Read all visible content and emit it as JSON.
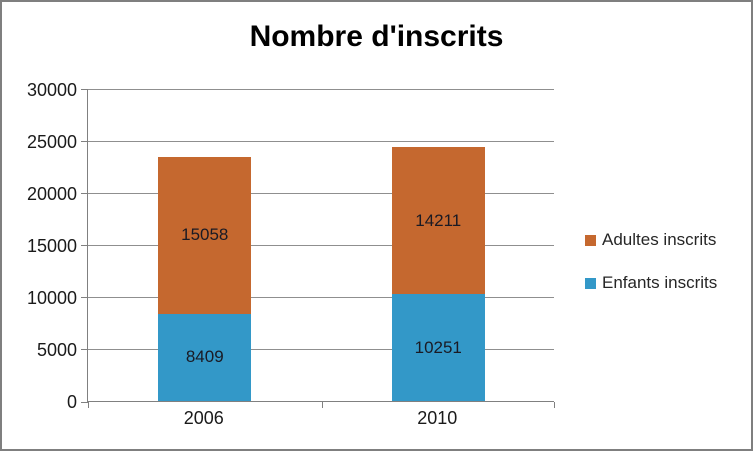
{
  "window": {
    "background": "#FFFFFF",
    "border_color": "#7F7F7F"
  },
  "chart_data": {
    "type": "bar",
    "stacked": true,
    "title": "Nombre d'inscrits",
    "categories": [
      "2006",
      "2010"
    ],
    "series": [
      {
        "name": "Enfants inscrits",
        "color": "#3398C8",
        "values": [
          8409,
          10251
        ]
      },
      {
        "name": "Adultes inscrits",
        "color": "#C5682F",
        "values": [
          15058,
          14211
        ]
      }
    ],
    "ylim": [
      0,
      30000
    ],
    "y_step": 5000,
    "y_tick_labels": [
      "0",
      "5000",
      "10000",
      "15000",
      "20000",
      "25000",
      "30000"
    ],
    "xlabel": "",
    "ylabel": "",
    "grid": true,
    "data_labels_visible": true,
    "label_color": "#1A1A24",
    "axis_color": "#808080",
    "grid_color": "#8F8F8F",
    "legend": {
      "position": "right",
      "entries": [
        {
          "label": "Adultes inscrits",
          "color": "#C5682F"
        },
        {
          "label": "Enfants inscrits",
          "color": "#3398C8"
        }
      ]
    }
  }
}
